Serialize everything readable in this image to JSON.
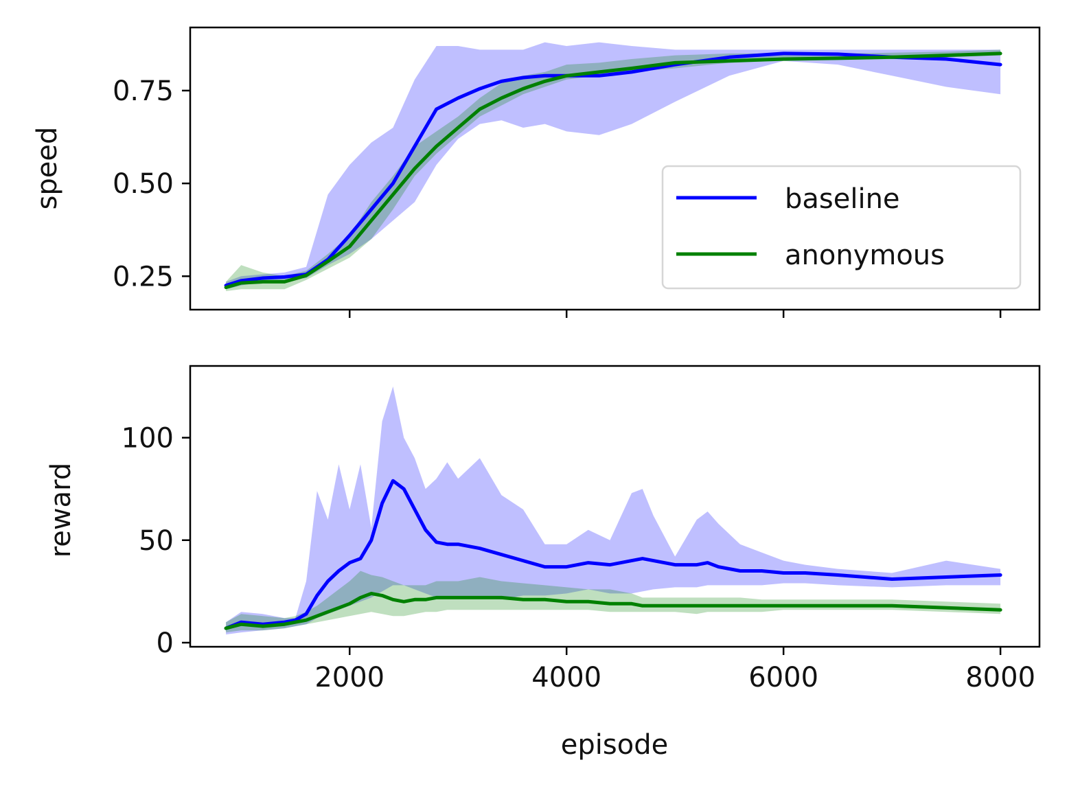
{
  "chart_data": [
    {
      "type": "line",
      "panel": "top",
      "ylabel": "speed",
      "xlabel": "",
      "xlim": [
        530,
        8360
      ],
      "ylim": [
        0.16,
        0.92
      ],
      "xticks": [
        2000,
        4000,
        6000,
        8000
      ],
      "yticks": [
        0.25,
        0.5,
        0.75
      ],
      "ytick_labels": [
        "0.25",
        "0.50",
        "0.75"
      ],
      "show_xtick_labels": false,
      "grid": false,
      "legend": {
        "placement": "lower-right",
        "entries": [
          {
            "label": "baseline",
            "color": "#0000ff"
          },
          {
            "label": "anonymous",
            "color": "#008000"
          }
        ]
      },
      "x": [
        860,
        1000,
        1200,
        1400,
        1600,
        1800,
        2000,
        2200,
        2400,
        2600,
        2800,
        3000,
        3200,
        3400,
        3600,
        3800,
        4000,
        4300,
        4600,
        5000,
        5500,
        6000,
        6500,
        7000,
        7500,
        8000
      ],
      "series": [
        {
          "name": "baseline",
          "color": "#0000ff",
          "band_color": "#0000ff",
          "values": [
            0.225,
            0.238,
            0.245,
            0.248,
            0.255,
            0.295,
            0.36,
            0.43,
            0.5,
            0.6,
            0.7,
            0.73,
            0.755,
            0.775,
            0.785,
            0.79,
            0.79,
            0.79,
            0.8,
            0.82,
            0.84,
            0.85,
            0.848,
            0.84,
            0.835,
            0.82
          ],
          "lower": [
            0.215,
            0.225,
            0.235,
            0.24,
            0.245,
            0.28,
            0.31,
            0.35,
            0.4,
            0.45,
            0.55,
            0.62,
            0.66,
            0.67,
            0.65,
            0.66,
            0.64,
            0.63,
            0.66,
            0.72,
            0.79,
            0.83,
            0.82,
            0.79,
            0.76,
            0.74
          ],
          "upper": [
            0.235,
            0.25,
            0.255,
            0.26,
            0.275,
            0.47,
            0.55,
            0.61,
            0.65,
            0.78,
            0.87,
            0.87,
            0.86,
            0.86,
            0.86,
            0.88,
            0.87,
            0.88,
            0.87,
            0.86,
            0.86,
            0.86,
            0.86,
            0.86,
            0.86,
            0.86
          ]
        },
        {
          "name": "anonymous",
          "color": "#008000",
          "band_color": "#008000",
          "values": [
            0.22,
            0.232,
            0.235,
            0.235,
            0.252,
            0.29,
            0.33,
            0.4,
            0.47,
            0.54,
            0.6,
            0.65,
            0.7,
            0.73,
            0.755,
            0.775,
            0.79,
            0.8,
            0.81,
            0.825,
            0.83,
            0.835,
            0.837,
            0.84,
            0.845,
            0.85
          ],
          "lower": [
            0.21,
            0.215,
            0.215,
            0.215,
            0.24,
            0.27,
            0.3,
            0.35,
            0.43,
            0.52,
            0.58,
            0.63,
            0.68,
            0.71,
            0.74,
            0.76,
            0.78,
            0.79,
            0.8,
            0.81,
            0.825,
            0.83,
            0.833,
            0.835,
            0.84,
            0.845
          ],
          "upper": [
            0.235,
            0.28,
            0.26,
            0.25,
            0.265,
            0.31,
            0.36,
            0.45,
            0.52,
            0.6,
            0.64,
            0.68,
            0.73,
            0.77,
            0.79,
            0.8,
            0.82,
            0.825,
            0.835,
            0.845,
            0.85,
            0.85,
            0.85,
            0.852,
            0.855,
            0.86
          ]
        }
      ]
    },
    {
      "type": "line",
      "panel": "bottom",
      "ylabel": "reward",
      "xlabel": "episode",
      "xlim": [
        530,
        8360
      ],
      "ylim": [
        -2,
        135
      ],
      "xticks": [
        2000,
        4000,
        6000,
        8000
      ],
      "xtick_labels": [
        "2000",
        "4000",
        "6000",
        "8000"
      ],
      "yticks": [
        0,
        50,
        100
      ],
      "ytick_labels": [
        "0",
        "50",
        "100"
      ],
      "show_xtick_labels": true,
      "grid": false,
      "x": [
        860,
        1000,
        1200,
        1400,
        1500,
        1600,
        1700,
        1800,
        1900,
        2000,
        2100,
        2200,
        2300,
        2400,
        2500,
        2600,
        2700,
        2800,
        2900,
        3000,
        3200,
        3400,
        3600,
        3800,
        4000,
        4200,
        4400,
        4600,
        4700,
        4800,
        5000,
        5200,
        5300,
        5400,
        5600,
        5800,
        6000,
        6200,
        6500,
        7000,
        7500,
        8000
      ],
      "series": [
        {
          "name": "baseline",
          "color": "#0000ff",
          "band_color": "#0000ff",
          "values": [
            7,
            10,
            9,
            10,
            11,
            14,
            23,
            30,
            35,
            39,
            41,
            50,
            68,
            79,
            75,
            65,
            55,
            49,
            48,
            48,
            46,
            43,
            40,
            37,
            37,
            39,
            38,
            40,
            41,
            40,
            38,
            38,
            39,
            37,
            35,
            35,
            34,
            34,
            33,
            31,
            32,
            33
          ],
          "lower": [
            4,
            5,
            6,
            7,
            8,
            9,
            12,
            14,
            16,
            18,
            20,
            22,
            25,
            28,
            28,
            26,
            24,
            22,
            22,
            22,
            22,
            21,
            23,
            23,
            24,
            26,
            24,
            24,
            25,
            26,
            27,
            27,
            28,
            28,
            28,
            28,
            29,
            29,
            28,
            27,
            28,
            28
          ],
          "upper": [
            10,
            15,
            14,
            12,
            12,
            30,
            74,
            60,
            87,
            65,
            87,
            56,
            108,
            125,
            100,
            90,
            75,
            80,
            88,
            80,
            90,
            72,
            65,
            48,
            48,
            55,
            50,
            73,
            75,
            62,
            42,
            60,
            64,
            58,
            48,
            44,
            40,
            38,
            36,
            34,
            40,
            36
          ]
        },
        {
          "name": "anonymous",
          "color": "#008000",
          "band_color": "#008000",
          "values": [
            7,
            9,
            8,
            9,
            10,
            11,
            13,
            15,
            17,
            19,
            22,
            24,
            23,
            21,
            20,
            21,
            21,
            22,
            22,
            22,
            22,
            22,
            21,
            21,
            20,
            20,
            19,
            19,
            18,
            18,
            18,
            18,
            18,
            18,
            18,
            18,
            18,
            18,
            18,
            18,
            17,
            16
          ],
          "lower": [
            5,
            6,
            6,
            7,
            8,
            9,
            10,
            11,
            12,
            13,
            14,
            15,
            14,
            13,
            13,
            14,
            15,
            15,
            16,
            16,
            16,
            16,
            16,
            16,
            16,
            16,
            15,
            15,
            15,
            15,
            15,
            14,
            15,
            15,
            15,
            15,
            16,
            16,
            16,
            16,
            15,
            14
          ],
          "upper": [
            10,
            14,
            13,
            12,
            13,
            15,
            18,
            22,
            26,
            30,
            35,
            33,
            32,
            30,
            28,
            28,
            28,
            30,
            30,
            30,
            32,
            30,
            29,
            28,
            27,
            26,
            26,
            24,
            22,
            22,
            22,
            22,
            22,
            22,
            22,
            21,
            21,
            21,
            21,
            21,
            20,
            19
          ]
        }
      ]
    }
  ]
}
